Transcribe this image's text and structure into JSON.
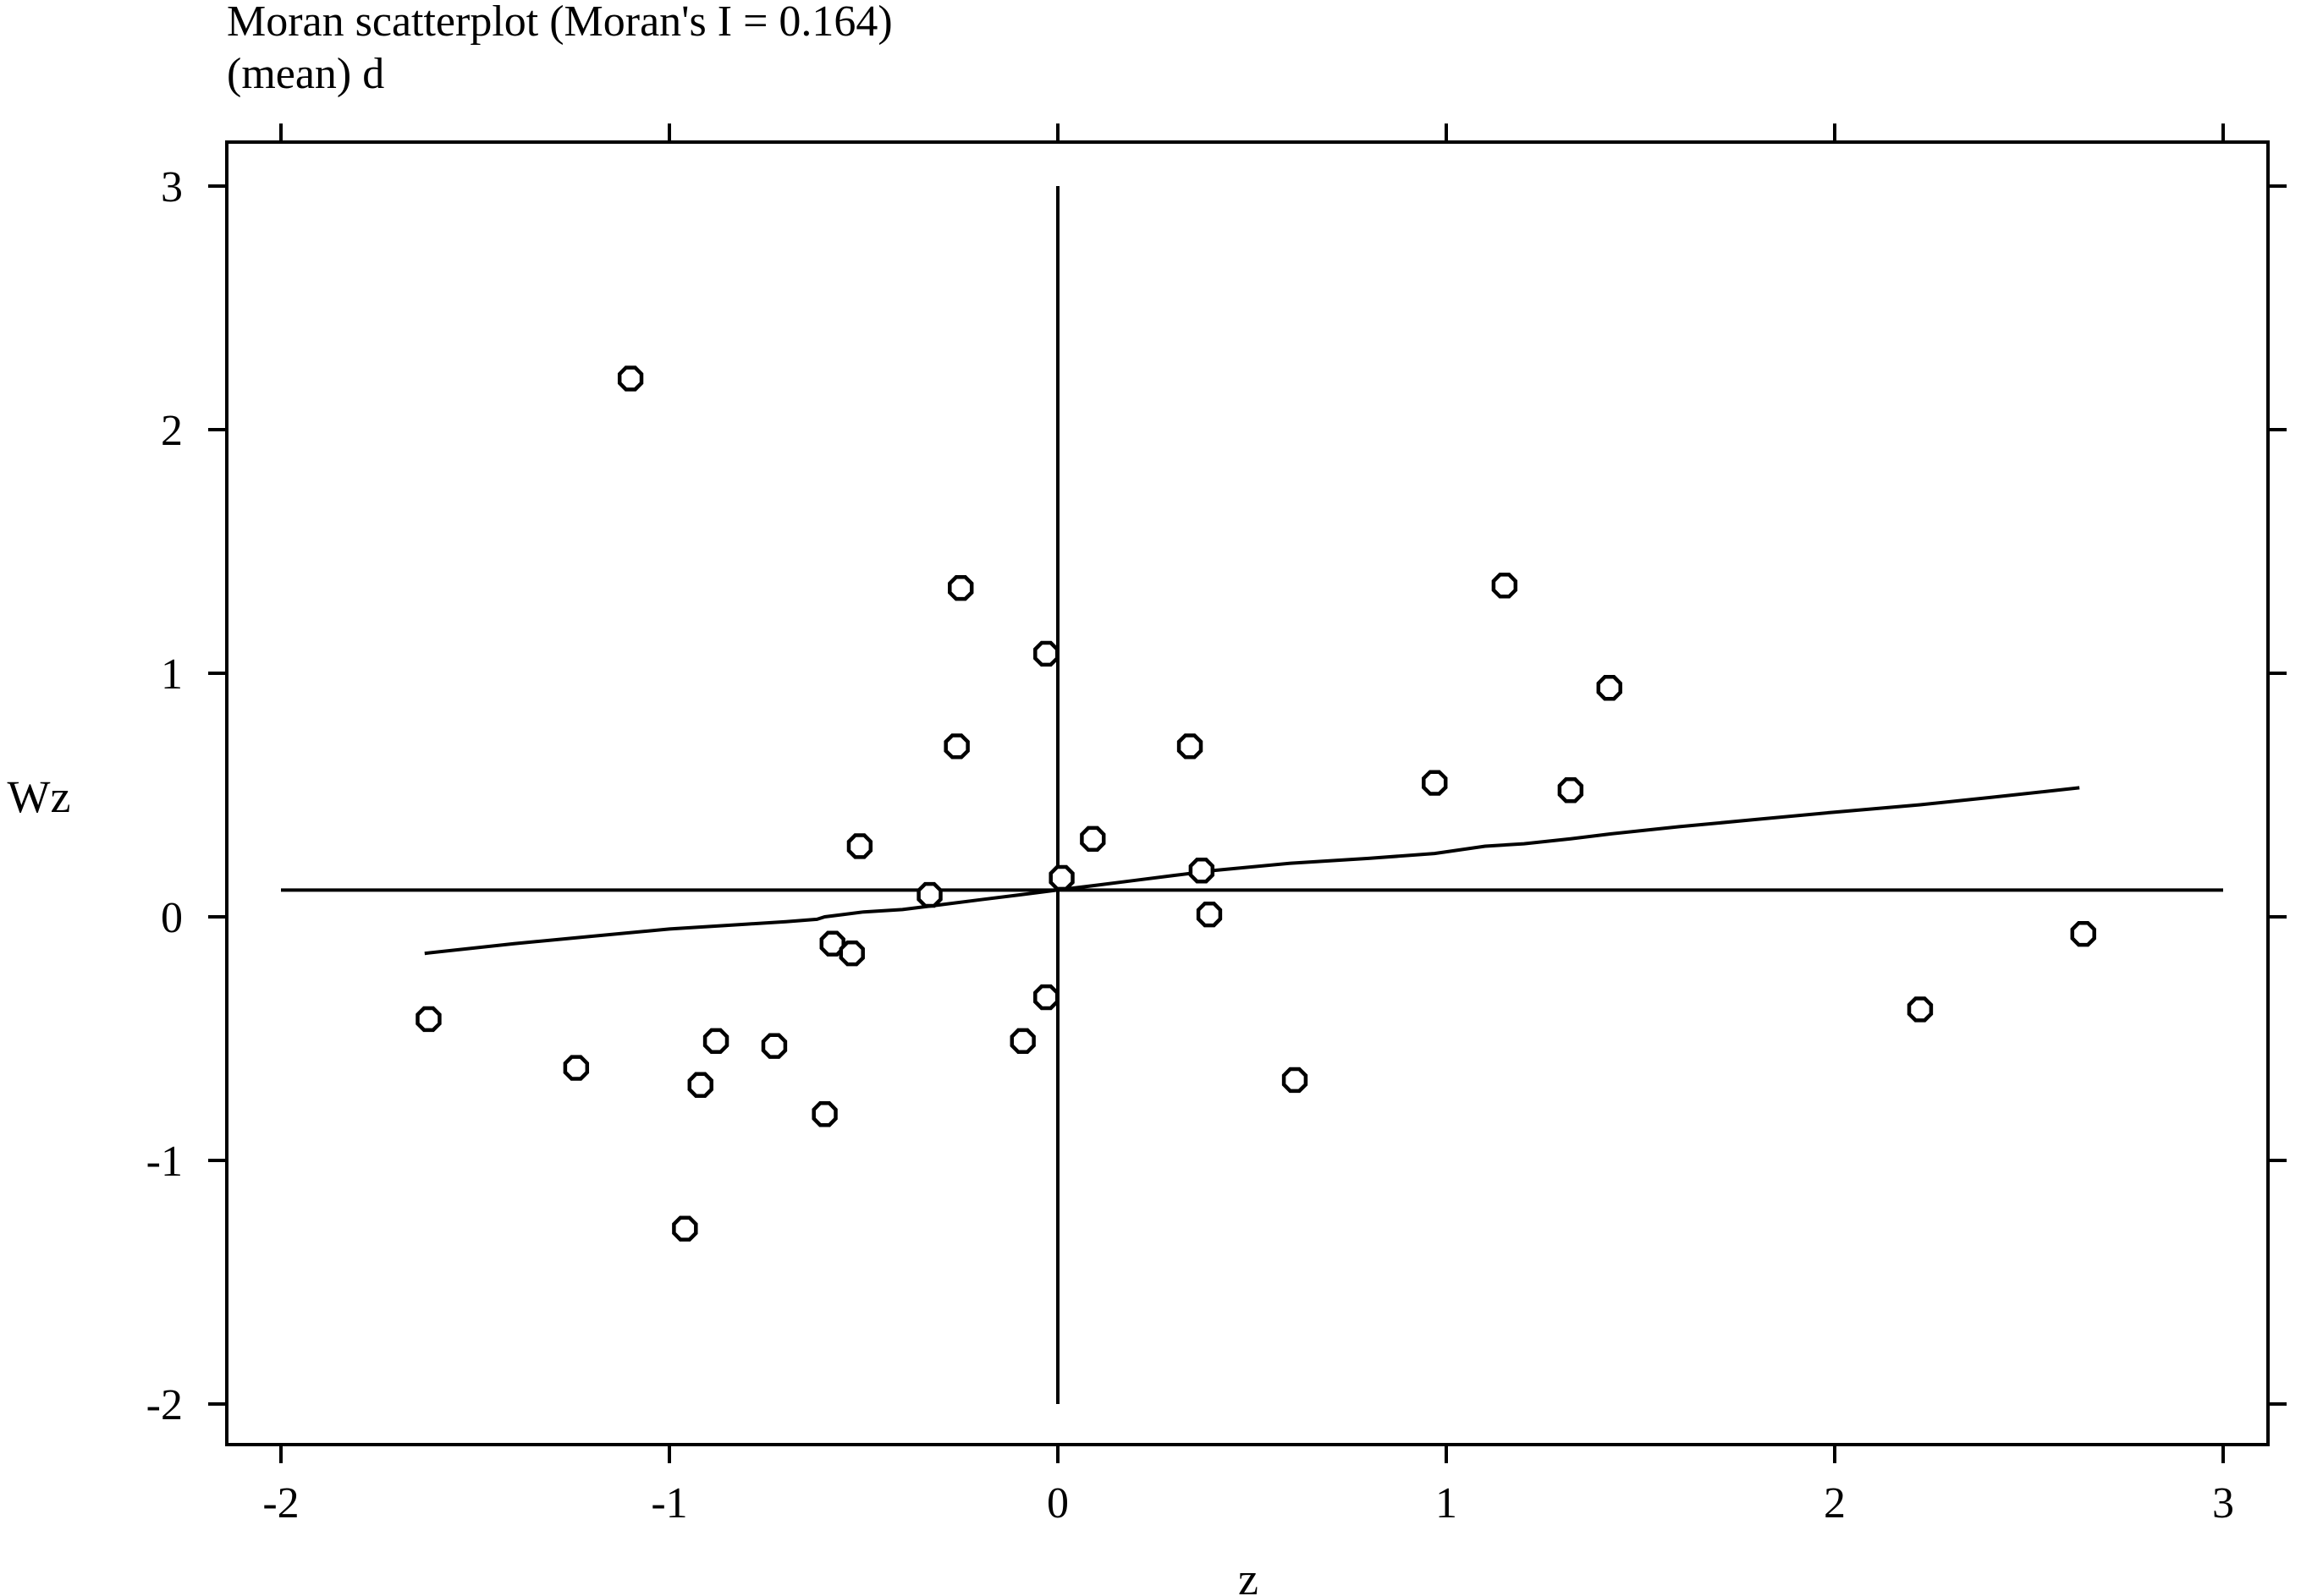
{
  "chart_data": {
    "type": "scatter",
    "title": "Moran scatterplot (Moran's I = 0.164)",
    "subtitle": "(mean) d",
    "xlabel": "z",
    "ylabel": "Wz",
    "xlim": [
      -2,
      3
    ],
    "ylim": [
      -2,
      3
    ],
    "xticks": [
      -2,
      -1,
      0,
      1,
      2,
      3
    ],
    "yticks": [
      -2,
      -1,
      0,
      1,
      2,
      3
    ],
    "xtick_labels": [
      "-2",
      "-1",
      "0",
      "1",
      "2",
      "3"
    ],
    "ytick_labels": [
      "-2",
      "-1",
      "0",
      "1",
      "2",
      "3"
    ],
    "grid": false,
    "reference_lines": {
      "vertical_x": 0,
      "horizontal_y": 0.11
    },
    "points": [
      {
        "x": -1.1,
        "y": 2.21
      },
      {
        "x": -0.25,
        "y": 1.35
      },
      {
        "x": -0.03,
        "y": 1.08
      },
      {
        "x": -0.26,
        "y": 0.7
      },
      {
        "x": 1.15,
        "y": 1.36
      },
      {
        "x": 1.42,
        "y": 0.94
      },
      {
        "x": 0.34,
        "y": 0.7
      },
      {
        "x": 0.97,
        "y": 0.55
      },
      {
        "x": 1.32,
        "y": 0.52
      },
      {
        "x": -0.51,
        "y": 0.29
      },
      {
        "x": 0.09,
        "y": 0.32
      },
      {
        "x": 0.01,
        "y": 0.16
      },
      {
        "x": 0.37,
        "y": 0.19
      },
      {
        "x": -0.33,
        "y": 0.09
      },
      {
        "x": 0.39,
        "y": 0.01
      },
      {
        "x": -0.58,
        "y": -0.11
      },
      {
        "x": -0.53,
        "y": -0.15
      },
      {
        "x": -1.62,
        "y": -0.42
      },
      {
        "x": -1.24,
        "y": -0.62
      },
      {
        "x": -0.88,
        "y": -0.51
      },
      {
        "x": -0.73,
        "y": -0.53
      },
      {
        "x": -0.92,
        "y": -0.69
      },
      {
        "x": -0.6,
        "y": -0.81
      },
      {
        "x": -0.03,
        "y": -0.33
      },
      {
        "x": -0.09,
        "y": -0.51
      },
      {
        "x": 0.61,
        "y": -0.67
      },
      {
        "x": -0.96,
        "y": -1.28
      },
      {
        "x": 2.22,
        "y": -0.38
      },
      {
        "x": 2.64,
        "y": -0.07
      }
    ],
    "smoothed_line": {
      "x": [
        -1.63,
        -1.4,
        -1.2,
        -1.0,
        -0.9,
        -0.8,
        -0.7,
        -0.62,
        -0.6,
        -0.55,
        -0.5,
        -0.4,
        -0.3,
        -0.2,
        -0.1,
        0.0,
        0.1,
        0.2,
        0.3,
        0.4,
        0.6,
        0.8,
        0.97,
        1.1,
        1.2,
        1.32,
        1.42,
        1.6,
        1.8,
        2.0,
        2.22,
        2.4,
        2.63
      ],
      "y": [
        -0.15,
        -0.11,
        -0.08,
        -0.05,
        -0.04,
        -0.03,
        -0.02,
        -0.01,
        0.0,
        0.01,
        0.02,
        0.03,
        0.05,
        0.07,
        0.09,
        0.11,
        0.13,
        0.15,
        0.17,
        0.19,
        0.22,
        0.24,
        0.26,
        0.29,
        0.3,
        0.32,
        0.34,
        0.37,
        0.4,
        0.43,
        0.46,
        0.49,
        0.53
      ]
    }
  }
}
